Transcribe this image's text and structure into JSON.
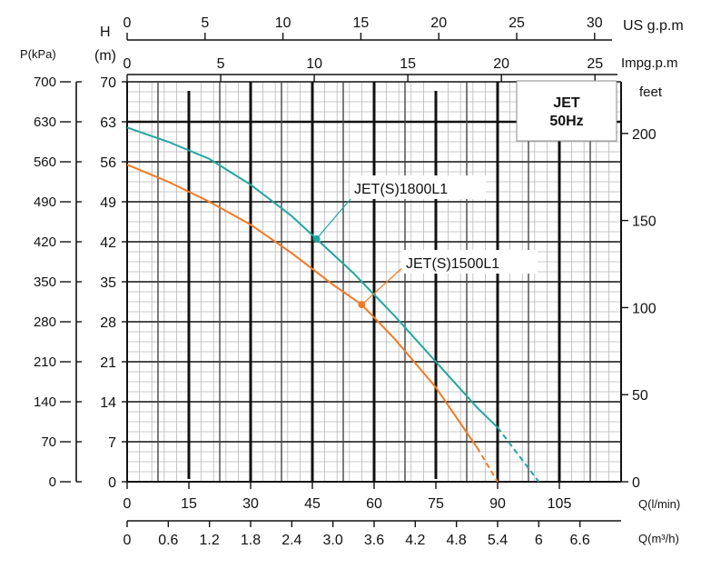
{
  "chart_data": {
    "type": "line",
    "corner_label": {
      "line1": "JET",
      "line2": "50Hz"
    },
    "axes": {
      "us_gpm": {
        "label": "US g.p.m",
        "ticks": [
          0,
          5,
          10,
          15,
          20,
          25,
          30
        ]
      },
      "imp_gpm": {
        "label": "Impg.p.m",
        "ticks": [
          0,
          5,
          10,
          15,
          20,
          25
        ]
      },
      "head_m": {
        "label_top": "H",
        "label_bottom": "(m)",
        "ticks": [
          0,
          7,
          14,
          21,
          28,
          35,
          42,
          49,
          56,
          63,
          70
        ],
        "range": [
          0,
          70
        ]
      },
      "pressure_kpa": {
        "label": "P(kPa)",
        "ticks": [
          0,
          70,
          140,
          210,
          280,
          350,
          420,
          490,
          560,
          630,
          700
        ]
      },
      "feet": {
        "label": "feet",
        "ticks": [
          0,
          50,
          100,
          150,
          200
        ]
      },
      "q_lmin": {
        "label": "Q(l/min)",
        "ticks": [
          0,
          15,
          30,
          45,
          60,
          75,
          90,
          105
        ],
        "range": [
          0,
          120
        ]
      },
      "q_m3h": {
        "label": "Q(m³/h)",
        "ticks": [
          "0",
          "0.6",
          "1.2",
          "1.8",
          "2.4",
          "3.0",
          "3.6",
          "4.2",
          "4.8",
          "5.4",
          "6",
          "6.6"
        ]
      }
    },
    "series": [
      {
        "name": "JET(S)1800L1",
        "color": "#1fa6a3",
        "x": [
          0,
          10,
          20,
          30,
          40,
          46,
          55,
          65,
          75,
          85,
          90
        ],
        "y": [
          62,
          59.5,
          56.5,
          52,
          46.5,
          42.5,
          36.5,
          29,
          21,
          13,
          9.5
        ],
        "dashed_x": [
          90,
          100
        ],
        "dashed_y": [
          9.5,
          0
        ],
        "marker": {
          "x": 46,
          "y": 42.5
        }
      },
      {
        "name": "JET(S)1500L1",
        "color": "#f07a22",
        "x": [
          0,
          10,
          20,
          30,
          40,
          50,
          57,
          65,
          75,
          85
        ],
        "y": [
          55.5,
          52.5,
          49,
          45,
          40,
          34.5,
          31,
          25,
          16.5,
          6
        ],
        "dashed_x": [
          85,
          90
        ],
        "dashed_y": [
          6,
          0
        ],
        "marker": {
          "x": 57,
          "y": 31
        }
      }
    ]
  }
}
